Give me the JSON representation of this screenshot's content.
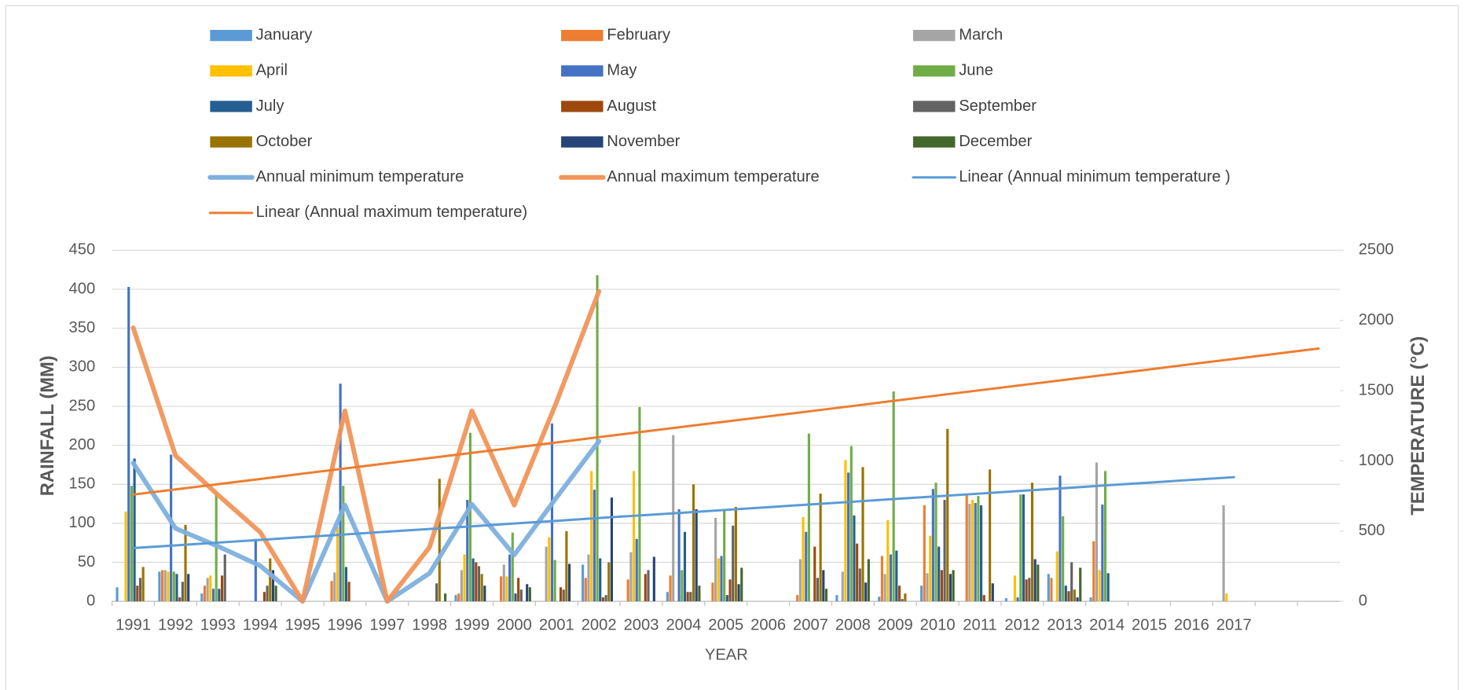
{
  "chart_data": {
    "type": "combo",
    "x_label": "YEAR",
    "y_label": "RAINFALL (MM)",
    "y2_label": "TEMPERATURE (°C)",
    "categories": [
      "1991",
      "1992",
      "1993",
      "1994",
      "1995",
      "1996",
      "1997",
      "1998",
      "1999",
      "2000",
      "2001",
      "2002",
      "2003",
      "2004",
      "2005",
      "2006",
      "2007",
      "2008",
      "2009",
      "2010",
      "2011",
      "2012",
      "2013",
      "2014",
      "2015",
      "2016",
      "2017",
      null,
      null
    ],
    "ylim": [
      0,
      450
    ],
    "yticks": [
      0,
      50,
      100,
      150,
      200,
      250,
      300,
      350,
      400,
      450
    ],
    "y2lim": [
      0,
      2500
    ],
    "y2ticks": [
      0,
      500,
      1000,
      1500,
      2000,
      2500
    ],
    "grid": true,
    "legend": "top",
    "series": [
      {
        "name": "January",
        "type": "bar",
        "color": "#5b9bd5",
        "values": [
          18,
          38,
          10,
          0,
          0,
          0,
          0,
          0,
          8,
          0,
          0,
          47,
          0,
          12,
          0,
          0,
          0,
          8,
          6,
          20,
          0,
          4,
          35,
          5,
          0,
          0,
          0,
          null,
          null
        ]
      },
      {
        "name": "February",
        "type": "bar",
        "color": "#ed7d31",
        "values": [
          0,
          40,
          20,
          0,
          0,
          26,
          0,
          0,
          10,
          32,
          0,
          30,
          28,
          33,
          24,
          0,
          8,
          0,
          58,
          123,
          136,
          0,
          30,
          77,
          0,
          0,
          0,
          null,
          null
        ]
      },
      {
        "name": "March",
        "type": "bar",
        "color": "#a5a5a5",
        "values": [
          0,
          40,
          30,
          0,
          0,
          37,
          0,
          0,
          40,
          47,
          70,
          60,
          63,
          213,
          107,
          0,
          54,
          38,
          35,
          36,
          125,
          0,
          0,
          178,
          0,
          0,
          123,
          null,
          null
        ]
      },
      {
        "name": "April",
        "type": "bar",
        "color": "#ffc000",
        "values": [
          115,
          38,
          33,
          0,
          0,
          95,
          0,
          0,
          60,
          32,
          82,
          167,
          167,
          0,
          55,
          0,
          108,
          181,
          104,
          84,
          130,
          33,
          64,
          40,
          0,
          0,
          10,
          null,
          null
        ]
      },
      {
        "name": "May",
        "type": "bar",
        "color": "#4472c4",
        "values": [
          403,
          188,
          16,
          80,
          0,
          279,
          0,
          0,
          130,
          60,
          228,
          143,
          80,
          118,
          58,
          0,
          89,
          165,
          60,
          144,
          126,
          5,
          161,
          124,
          0,
          0,
          0,
          null,
          null
        ]
      },
      {
        "name": "June",
        "type": "bar",
        "color": "#70ad47",
        "values": [
          148,
          38,
          140,
          0,
          0,
          148,
          0,
          0,
          216,
          88,
          53,
          418,
          249,
          40,
          118,
          0,
          215,
          199,
          269,
          152,
          135,
          137,
          109,
          167,
          0,
          0,
          0,
          null,
          null
        ]
      },
      {
        "name": "July",
        "type": "bar",
        "color": "#255e91",
        "values": [
          183,
          35,
          16,
          0,
          0,
          44,
          0,
          0,
          55,
          10,
          0,
          55,
          0,
          89,
          8,
          0,
          0,
          110,
          65,
          70,
          123,
          137,
          20,
          36,
          0,
          0,
          0,
          null,
          null
        ]
      },
      {
        "name": "August",
        "type": "bar",
        "color": "#9e480e",
        "values": [
          20,
          5,
          33,
          12,
          0,
          25,
          0,
          0,
          50,
          30,
          18,
          5,
          35,
          12,
          28,
          0,
          70,
          74,
          20,
          40,
          8,
          28,
          13,
          0,
          0,
          0,
          0,
          null,
          null
        ]
      },
      {
        "name": "September",
        "type": "bar",
        "color": "#636363",
        "values": [
          30,
          25,
          60,
          20,
          0,
          0,
          0,
          23,
          45,
          15,
          15,
          8,
          40,
          12,
          97,
          0,
          30,
          42,
          3,
          130,
          0,
          30,
          50,
          0,
          0,
          0,
          0,
          null,
          null
        ]
      },
      {
        "name": "October",
        "type": "bar",
        "color": "#997300",
        "values": [
          44,
          98,
          0,
          55,
          0,
          0,
          0,
          157,
          35,
          0,
          90,
          50,
          0,
          150,
          121,
          0,
          138,
          172,
          10,
          221,
          169,
          152,
          15,
          0,
          0,
          0,
          0,
          null,
          null
        ]
      },
      {
        "name": "November",
        "type": "bar",
        "color": "#264478",
        "values": [
          0,
          35,
          0,
          40,
          0,
          0,
          0,
          0,
          20,
          22,
          48,
          133,
          57,
          118,
          22,
          0,
          40,
          24,
          0,
          35,
          23,
          54,
          5,
          0,
          0,
          0,
          0,
          null,
          null
        ]
      },
      {
        "name": "December",
        "type": "bar",
        "color": "#43682b",
        "values": [
          0,
          0,
          0,
          20,
          0,
          0,
          0,
          10,
          0,
          18,
          0,
          0,
          0,
          20,
          43,
          0,
          16,
          54,
          0,
          40,
          0,
          47,
          43,
          0,
          0,
          0,
          0,
          null,
          null
        ]
      },
      {
        "name": "Annual minimum temperature",
        "type": "line",
        "axis": "y2",
        "color": "#7eb0de",
        "values": [
          984,
          519,
          392,
          253,
          0,
          685,
          0,
          200,
          690,
          330,
          740,
          1140,
          null,
          null,
          null,
          null,
          null,
          null,
          null,
          null,
          null,
          null,
          null,
          null,
          null,
          null,
          null,
          null,
          null
        ]
      },
      {
        "name": "Annual maximum temperature",
        "type": "line",
        "axis": "y2",
        "color": "#f0955a",
        "values": [
          1948,
          1037,
          758,
          492,
          0,
          1356,
          0,
          386,
          1356,
          685,
          1420,
          2207,
          null,
          null,
          null,
          null,
          null,
          null,
          null,
          null,
          null,
          null,
          null,
          null,
          null,
          null,
          null,
          null,
          null
        ]
      },
      {
        "name": "Linear (Annual minimum temperature )",
        "type": "trendline",
        "axis": "y2",
        "color": "#5b9bd5",
        "values": [
          379,
          398,
          418,
          437,
          457,
          476,
          496,
          515,
          534,
          554,
          573,
          593,
          612,
          631,
          651,
          670,
          690,
          709,
          729,
          748,
          767,
          787,
          806,
          826,
          845,
          865,
          884,
          null,
          null
        ]
      },
      {
        "name": "Linear (Annual maximum temperature)",
        "type": "trendline",
        "axis": "y2",
        "color": "#ed7d31",
        "values": [
          760,
          797,
          834,
          871,
          909,
          946,
          983,
          1020,
          1057,
          1094,
          1131,
          1169,
          1206,
          1243,
          1280,
          1317,
          1354,
          1391,
          1429,
          1466,
          1503,
          1540,
          1577,
          1614,
          1651,
          1689,
          1726,
          1763,
          1800
        ]
      }
    ]
  }
}
